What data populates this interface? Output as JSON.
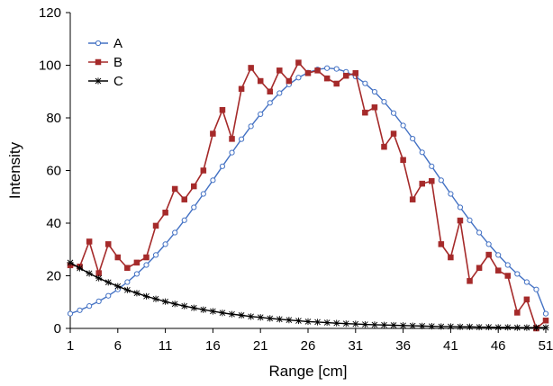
{
  "chart_data": {
    "type": "line",
    "xlabel": "Range [cm]",
    "ylabel": "Intensity",
    "xlim": [
      1,
      51
    ],
    "ylim": [
      0,
      120
    ],
    "x_ticks": [
      1,
      6,
      11,
      16,
      21,
      26,
      31,
      36,
      41,
      46,
      51
    ],
    "y_ticks": [
      0,
      20,
      40,
      60,
      80,
      100,
      120
    ],
    "grid": false,
    "legend": "top-left",
    "x": [
      1,
      2,
      3,
      4,
      5,
      6,
      7,
      8,
      9,
      10,
      11,
      12,
      13,
      14,
      15,
      16,
      17,
      18,
      19,
      20,
      21,
      22,
      23,
      24,
      25,
      26,
      27,
      28,
      29,
      30,
      31,
      32,
      33,
      34,
      35,
      36,
      37,
      38,
      39,
      40,
      41,
      42,
      43,
      44,
      45,
      46,
      47,
      48,
      49,
      50,
      51
    ],
    "series": [
      {
        "name": "A",
        "color": "#4472c4",
        "marker": "open-circle",
        "values": [
          5.6,
          6.9,
          8.5,
          10.3,
          12.4,
          14.8,
          17.6,
          20.7,
          24.1,
          27.9,
          32.0,
          36.4,
          41.1,
          46.0,
          51.1,
          56.3,
          61.6,
          66.8,
          71.9,
          76.8,
          81.4,
          85.7,
          89.4,
          92.7,
          95.3,
          97.2,
          98.4,
          98.9,
          98.6,
          97.5,
          95.7,
          93.1,
          89.9,
          86.1,
          81.8,
          77.1,
          72.1,
          66.9,
          61.6,
          56.3,
          51.1,
          46.0,
          41.1,
          36.4,
          32.0,
          27.9,
          24.1,
          20.7,
          17.6,
          14.8,
          5.6
        ]
      },
      {
        "name": "B",
        "color": "#a52a2a",
        "marker": "filled-square",
        "values": [
          24,
          23.5,
          33,
          21,
          32,
          27,
          23,
          25,
          27,
          39,
          44,
          53,
          49,
          54,
          60,
          74,
          83,
          72,
          91,
          99,
          94,
          90,
          98,
          94,
          101,
          97,
          98,
          95,
          93,
          96,
          97,
          82,
          84,
          69,
          74,
          64,
          49,
          55,
          56,
          32,
          27,
          41,
          18,
          23,
          28,
          22,
          20,
          6,
          11,
          0,
          3
        ]
      },
      {
        "name": "C",
        "color": "#000000",
        "marker": "star",
        "values": [
          25.0,
          22.9,
          20.9,
          19.1,
          17.5,
          16.0,
          14.6,
          13.4,
          12.2,
          11.2,
          10.2,
          9.3,
          8.5,
          7.8,
          7.1,
          6.5,
          5.9,
          5.4,
          5.0,
          4.5,
          4.2,
          3.8,
          3.5,
          3.2,
          2.9,
          2.6,
          2.4,
          2.2,
          2.0,
          1.8,
          1.7,
          1.5,
          1.4,
          1.3,
          1.2,
          1.1,
          1.0,
          0.9,
          0.8,
          0.7,
          0.7,
          0.6,
          0.6,
          0.5,
          0.5,
          0.4,
          0.4,
          0.3,
          0.3,
          0.3,
          0.3
        ]
      }
    ]
  }
}
